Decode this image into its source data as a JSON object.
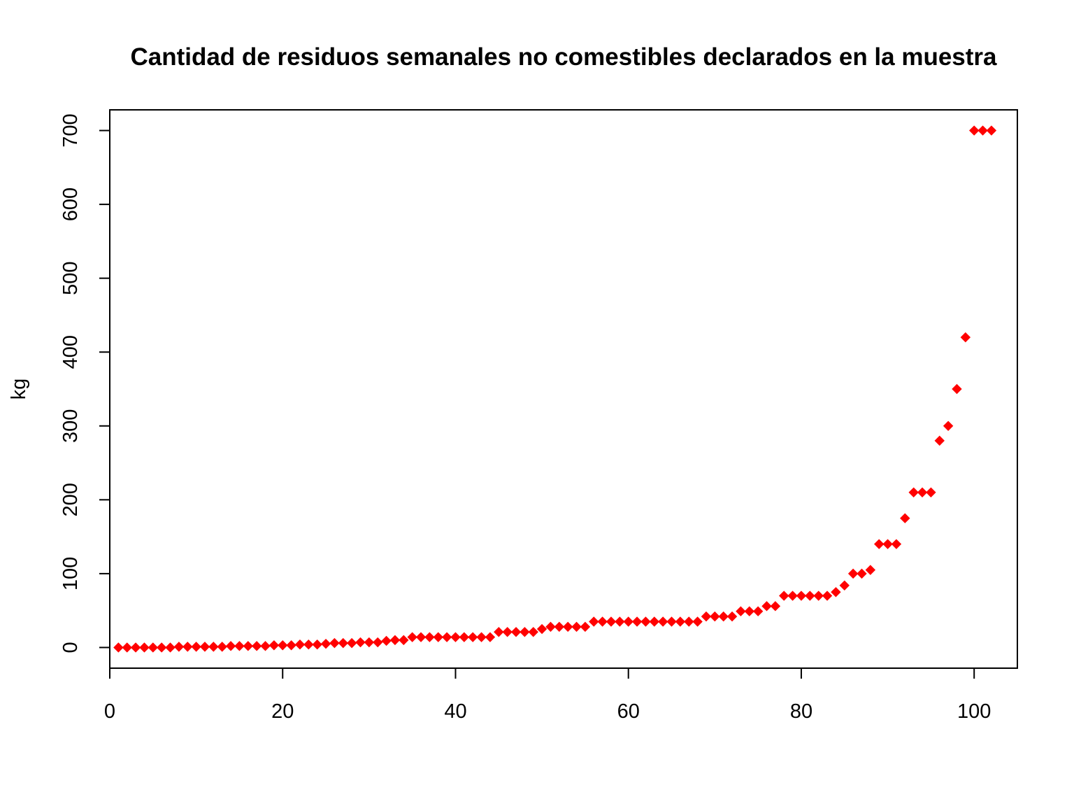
{
  "chart_data": {
    "type": "scatter",
    "title": "Cantidad de residuos semanales no comestibles declarados en la muestra",
    "xlabel": "",
    "ylabel": "kg",
    "xlim": [
      0,
      105
    ],
    "ylim": [
      -28,
      728
    ],
    "x_ticks": [
      0,
      20,
      40,
      60,
      80,
      100
    ],
    "y_ticks": [
      0,
      100,
      200,
      300,
      400,
      500,
      600,
      700
    ],
    "marker": "filled-diamond",
    "marker_color": "#ff0000",
    "grid": false,
    "legend": "none",
    "series": [
      {
        "x": [
          1,
          2,
          3,
          4,
          5,
          6,
          7,
          8,
          9,
          10,
          11,
          12,
          13,
          14,
          15,
          16,
          17,
          18,
          19,
          20,
          21,
          22,
          23,
          24,
          25,
          26,
          27,
          28,
          29,
          30,
          31,
          32,
          33,
          34,
          35,
          36,
          37,
          38,
          39,
          40,
          41,
          42,
          43,
          44,
          45,
          46,
          47,
          48,
          49,
          50,
          51,
          52,
          53,
          54,
          55,
          56,
          57,
          58,
          59,
          60,
          61,
          62,
          63,
          64,
          65,
          66,
          67,
          68,
          69,
          70,
          71,
          72,
          73,
          74,
          75,
          76,
          77,
          78,
          79,
          80,
          81,
          82,
          83,
          84,
          85,
          86,
          87,
          88,
          89,
          90,
          91,
          92,
          93,
          94,
          95,
          96,
          97,
          98,
          99,
          100,
          101,
          102
        ],
        "y": [
          0,
          0,
          0,
          0,
          0,
          0,
          0,
          1,
          1,
          1,
          1,
          1,
          1,
          2,
          2,
          2,
          2,
          2,
          3,
          3,
          3,
          4,
          4,
          4,
          5,
          6,
          6,
          6,
          7,
          7,
          7,
          9,
          10,
          10,
          14,
          14,
          14,
          14,
          14,
          14,
          14,
          14,
          14,
          14,
          21,
          21,
          21,
          21,
          21,
          25,
          28,
          28,
          28,
          28,
          28,
          35,
          35,
          35,
          35,
          35,
          35,
          35,
          35,
          35,
          35,
          35,
          35,
          35,
          42,
          42,
          42,
          42,
          49,
          49,
          49,
          56,
          56,
          70,
          70,
          70,
          70,
          70,
          70,
          75,
          84,
          100,
          100,
          105,
          140,
          140,
          140,
          175,
          210,
          210,
          210,
          280,
          300,
          350,
          420,
          700,
          700,
          700
        ]
      }
    ]
  }
}
